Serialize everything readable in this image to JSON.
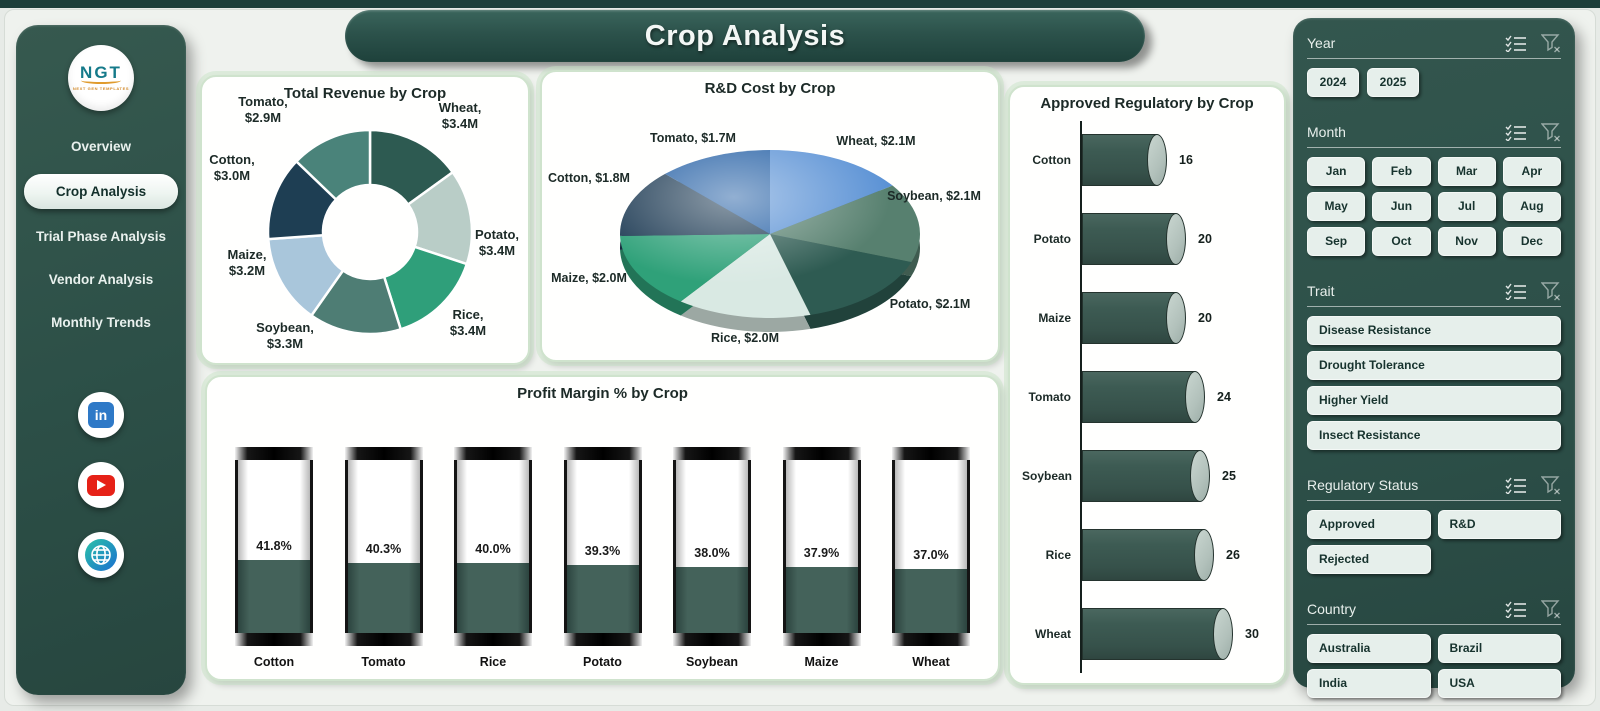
{
  "page_title": "Crop Analysis",
  "header": {
    "title": "Crop Analysis"
  },
  "sidebar": {
    "logo": {
      "text": "NGT",
      "subtext": "NEXT GEN TEMPLATES"
    },
    "items": [
      {
        "label": "Overview",
        "active": false
      },
      {
        "label": "Crop Analysis",
        "active": true
      },
      {
        "label": "Trial Phase Analysis",
        "active": false
      },
      {
        "label": "Vendor Analysis",
        "active": false
      },
      {
        "label": "Monthly Trends",
        "active": false
      }
    ],
    "social_icons": [
      "linkedin-icon",
      "youtube-icon",
      "website-icon"
    ]
  },
  "filters": {
    "sections": [
      {
        "title": "Year",
        "options": [
          "2024",
          "2025"
        ]
      },
      {
        "title": "Month",
        "options": [
          "Jan",
          "Feb",
          "Mar",
          "Apr",
          "May",
          "Jun",
          "Jul",
          "Aug",
          "Sep",
          "Oct",
          "Nov",
          "Dec"
        ]
      },
      {
        "title": "Trait",
        "options": [
          "Disease Resistance",
          "Drought Tolerance",
          "Higher Yield",
          "Insect Resistance"
        ]
      },
      {
        "title": "Regulatory Status",
        "options": [
          "Approved",
          "R&D",
          "Rejected"
        ]
      },
      {
        "title": "Country",
        "options": [
          "Australia",
          "Brazil",
          "India",
          "USA"
        ]
      }
    ]
  },
  "chart_data": [
    {
      "type": "donut",
      "title": "Total Revenue by Crop",
      "unit": "$M",
      "points": [
        {
          "name": "Wheat",
          "value": 3.4,
          "label": "$3.4M"
        },
        {
          "name": "Potato",
          "value": 3.4,
          "label": "$3.4M"
        },
        {
          "name": "Rice",
          "value": 3.4,
          "label": "$3.4M"
        },
        {
          "name": "Soybean",
          "value": 3.3,
          "label": "$3.3M"
        },
        {
          "name": "Maize",
          "value": 3.2,
          "label": "$3.2M"
        },
        {
          "name": "Cotton",
          "value": 3.0,
          "label": "$3.0M"
        },
        {
          "name": "Tomato",
          "value": 2.9,
          "label": "$2.9M"
        }
      ]
    },
    {
      "type": "pie",
      "title": "R&D Cost by Crop",
      "unit": "$M",
      "points": [
        {
          "name": "Wheat",
          "value": 2.1,
          "label": "$2.1M"
        },
        {
          "name": "Soybean",
          "value": 2.1,
          "label": "$2.1M"
        },
        {
          "name": "Potato",
          "value": 2.1,
          "label": "$2.1M"
        },
        {
          "name": "Rice",
          "value": 2.0,
          "label": "$2.0M"
        },
        {
          "name": "Maize",
          "value": 2.0,
          "label": "$2.0M"
        },
        {
          "name": "Cotton",
          "value": 1.8,
          "label": "$1.8M"
        },
        {
          "name": "Tomato",
          "value": 1.7,
          "label": "$1.7M"
        }
      ]
    },
    {
      "type": "bar",
      "title": "Approved Regulatory by Crop",
      "orientation": "horizontal",
      "points": [
        {
          "name": "Cotton",
          "value": 16
        },
        {
          "name": "Potato",
          "value": 20
        },
        {
          "name": "Maize",
          "value": 20
        },
        {
          "name": "Tomato",
          "value": 24
        },
        {
          "name": "Soybean",
          "value": 25
        },
        {
          "name": "Rice",
          "value": 26
        },
        {
          "name": "Wheat",
          "value": 30
        }
      ]
    },
    {
      "type": "bar",
      "title": "Profit Margin % by Crop",
      "orientation": "vertical",
      "unit": "%",
      "points": [
        {
          "name": "Cotton",
          "value": 41.8,
          "label": "41.8%"
        },
        {
          "name": "Tomato",
          "value": 40.3,
          "label": "40.3%"
        },
        {
          "name": "Rice",
          "value": 40.0,
          "label": "40.0%"
        },
        {
          "name": "Potato",
          "value": 39.3,
          "label": "39.3%"
        },
        {
          "name": "Soybean",
          "value": 38.0,
          "label": "38.0%"
        },
        {
          "name": "Maize",
          "value": 37.9,
          "label": "37.9%"
        },
        {
          "name": "Wheat",
          "value": 37.0,
          "label": "37.0%"
        }
      ]
    }
  ],
  "colors": {
    "revenue_slices": [
      "#2d5a51",
      "#b9cdc7",
      "#2f9f7a",
      "#4e7d74",
      "#a9c6db",
      "#1e3e53",
      "#4a837a"
    ],
    "rnd_slices": [
      "#5b92d5",
      "#57806f",
      "#2e5b52",
      "#d9e9e3",
      "#2fa179",
      "#1f3c55",
      "#2560a5"
    ],
    "bar_fill": "#3d5b53",
    "bar_cap": "#b7c5bf",
    "battery_fill": "#44625a",
    "panel_bg": "#2e524b",
    "accent_dark": "#1d3f3a"
  }
}
